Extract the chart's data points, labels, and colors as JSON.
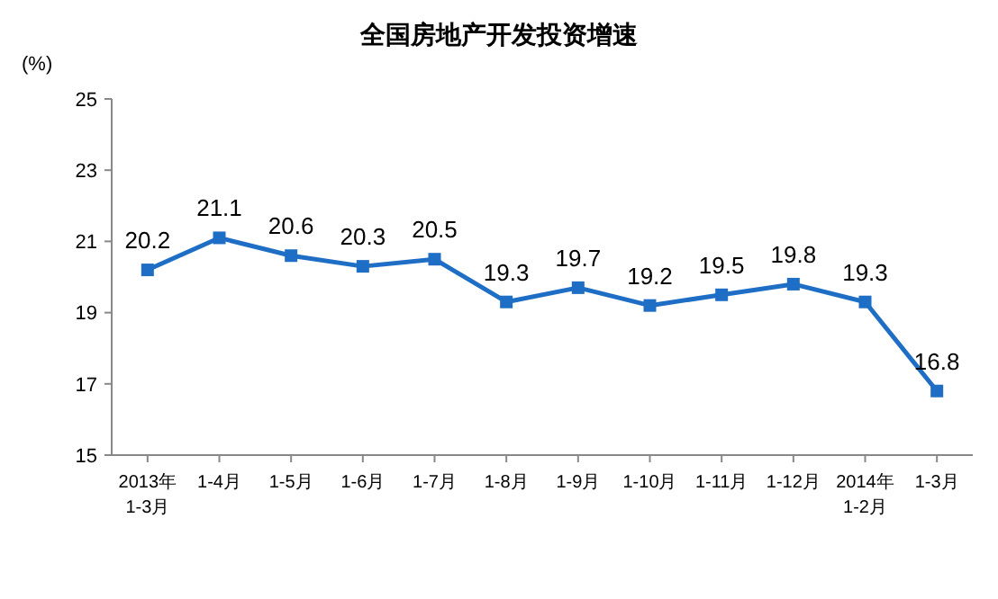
{
  "chart_data": {
    "type": "line",
    "title": "全国房地产开发投资增速",
    "ylabel": "(%)",
    "categories": [
      "2013年\n1-3月",
      "1-4月",
      "1-5月",
      "1-6月",
      "1-7月",
      "1-8月",
      "1-9月",
      "1-10月",
      "1-11月",
      "1-12月",
      "2014年\n1-2月",
      "1-3月"
    ],
    "series": [
      {
        "color": "#1f6ec6",
        "values": [
          20.2,
          21.1,
          20.6,
          20.3,
          20.5,
          19.3,
          19.7,
          19.2,
          19.5,
          19.8,
          19.3,
          16.8
        ]
      }
    ],
    "ylim": [
      15,
      25
    ],
    "yticks": [
      15,
      17,
      19,
      21,
      23,
      25
    ],
    "data_labels": true,
    "marker": "square",
    "grid": false
  }
}
